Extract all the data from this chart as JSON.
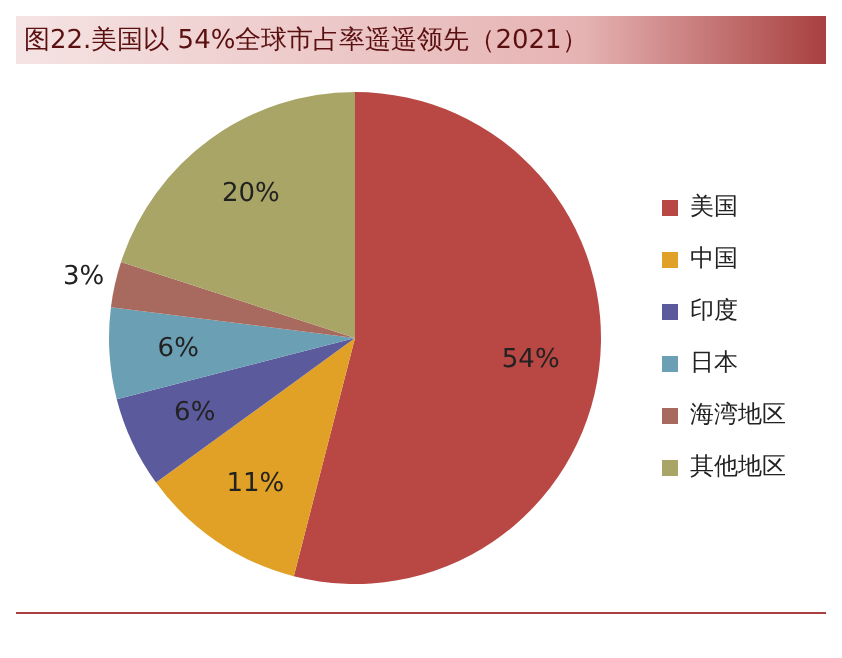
{
  "chart_data": {
    "type": "pie",
    "title": "图22.美国以 54%全球市占率遥遥领先（2021）",
    "categories": [
      "美国",
      "中国",
      "印度",
      "日本",
      "海湾地区",
      "其他地区"
    ],
    "values": [
      54,
      11,
      6,
      6,
      3,
      20
    ],
    "value_labels": [
      "54%",
      "11%",
      "6%",
      "6%",
      "3%",
      "20%"
    ],
    "colors": [
      "#b94744",
      "#e0a126",
      "#5b5a9c",
      "#6a9fb4",
      "#a86a5e",
      "#a8a566"
    ],
    "legend": "right"
  }
}
